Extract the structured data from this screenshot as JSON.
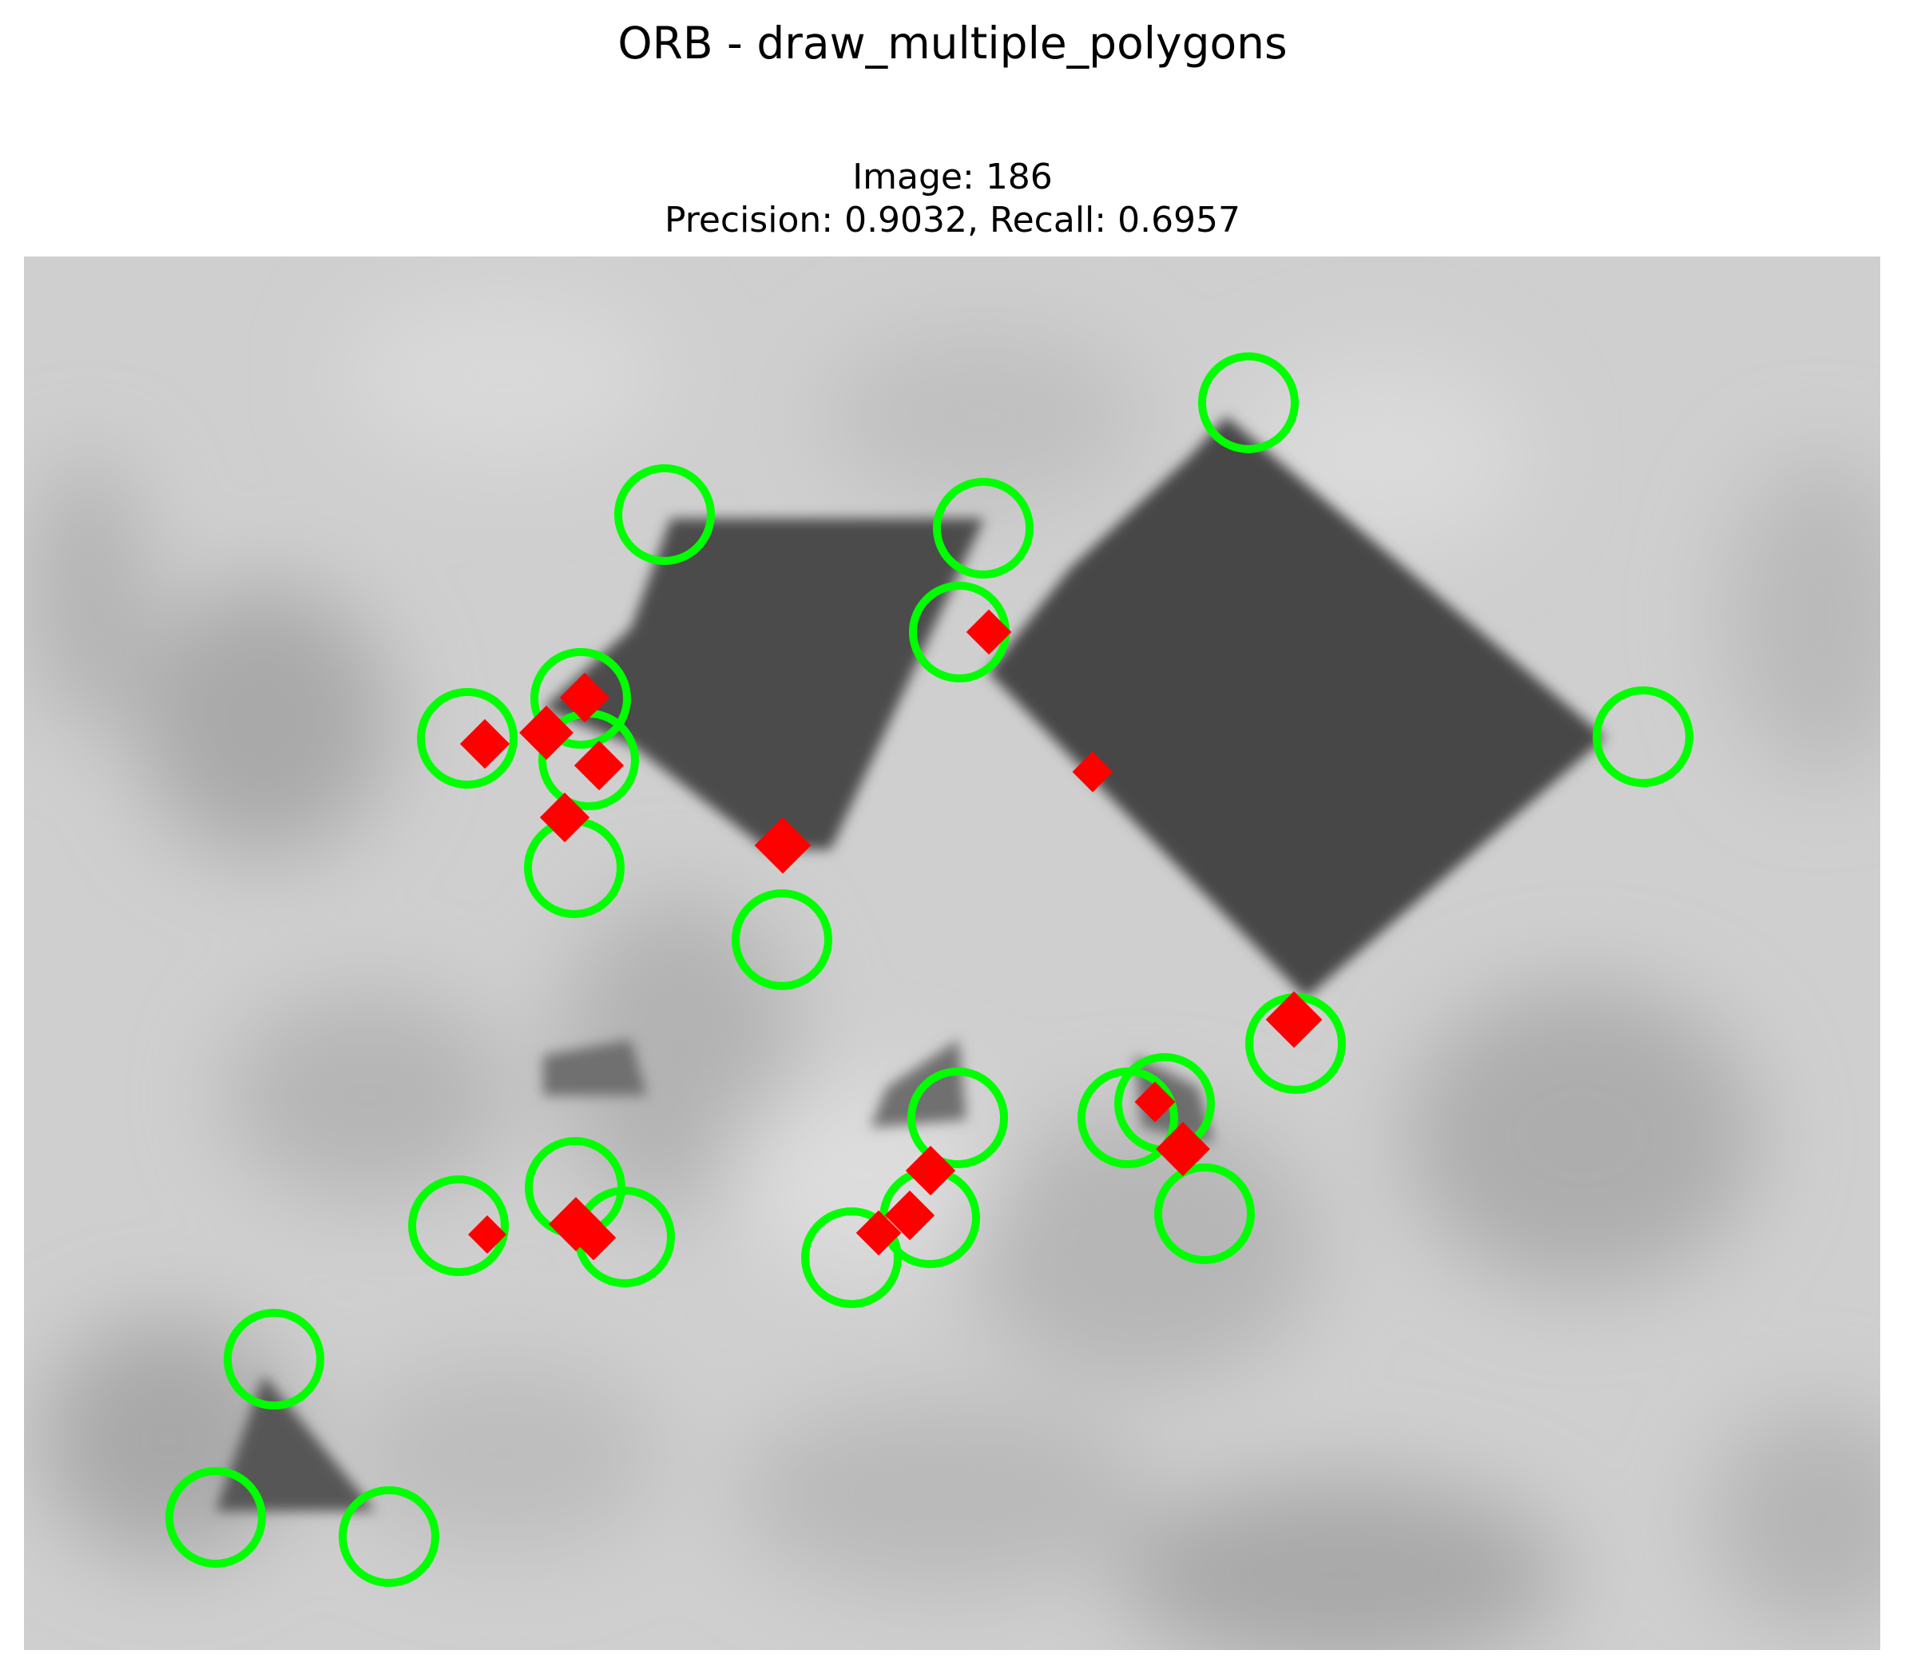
{
  "figure": {
    "suptitle": "ORB - draw_multiple_polygons",
    "image_label": "Image: 186",
    "metrics_label": "Precision: 0.9032, Recall: 0.6957"
  },
  "colors": {
    "background": "#d0d0d0",
    "polygon": "#4a4a4a",
    "ground_truth": "#00ff00",
    "detected": "#ff0000"
  },
  "legend_semantics": {
    "green_circles": "ground-truth keypoints",
    "red_blobs": "detected keypoints"
  }
}
